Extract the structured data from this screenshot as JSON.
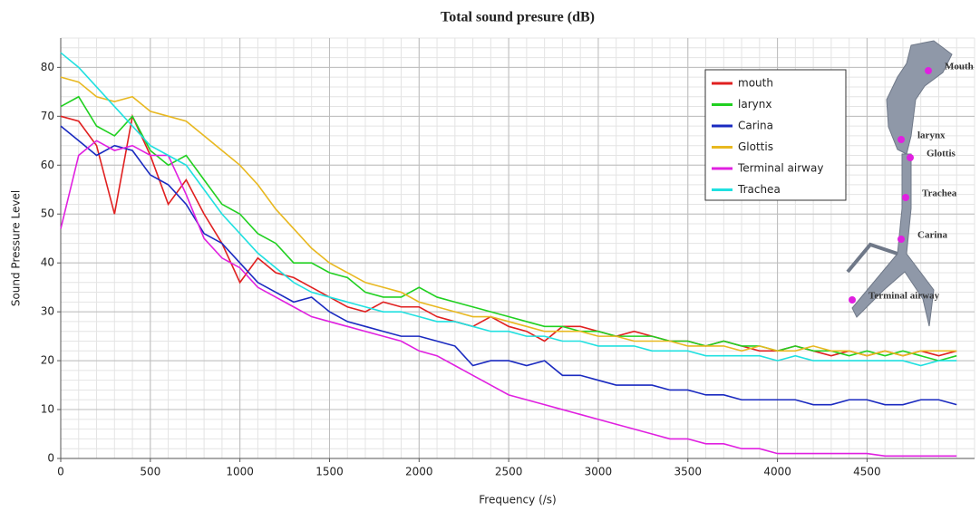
{
  "chart_data": {
    "type": "line",
    "title": "Total sound presure (dB)",
    "x_label": "Frequency (/s)",
    "y_label": "Sound Pressure Level",
    "x": [
      0,
      100,
      200,
      300,
      400,
      500,
      600,
      700,
      800,
      900,
      1000,
      1100,
      1200,
      1300,
      1400,
      1500,
      1600,
      1700,
      1800,
      1900,
      2000,
      2100,
      2200,
      2300,
      2400,
      2500,
      2600,
      2700,
      2800,
      2900,
      3000,
      3100,
      3200,
      3300,
      3400,
      3500,
      3600,
      3700,
      3800,
      3900,
      4000,
      4100,
      4200,
      4300,
      4400,
      4500,
      4600,
      4700,
      4800,
      4900,
      5000
    ],
    "series": [
      {
        "name": "mouth",
        "color": "#e02020",
        "values": [
          70,
          69,
          64,
          50,
          70,
          62,
          52,
          57,
          50,
          44,
          36,
          41,
          38,
          37,
          35,
          33,
          31,
          30,
          32,
          31,
          31,
          29,
          28,
          27,
          29,
          27,
          26,
          24,
          27,
          27,
          26,
          25,
          26,
          25,
          24,
          24,
          23,
          24,
          23,
          22,
          22,
          23,
          22,
          21,
          22,
          21,
          22,
          21,
          22,
          21,
          22
        ]
      },
      {
        "name": "larynx",
        "color": "#20d020",
        "values": [
          72,
          74,
          68,
          66,
          70,
          63,
          60,
          62,
          57,
          52,
          50,
          46,
          44,
          40,
          40,
          38,
          37,
          34,
          33,
          33,
          35,
          33,
          32,
          31,
          30,
          29,
          28,
          27,
          27,
          26,
          26,
          25,
          25,
          25,
          24,
          24,
          23,
          24,
          23,
          23,
          22,
          23,
          22,
          22,
          21,
          22,
          21,
          22,
          21,
          20,
          21
        ]
      },
      {
        "name": "Carina",
        "color": "#1a2ac0",
        "values": [
          68,
          65,
          62,
          64,
          63,
          58,
          56,
          52,
          46,
          44,
          40,
          36,
          34,
          32,
          33,
          30,
          28,
          27,
          26,
          25,
          25,
          24,
          23,
          19,
          20,
          20,
          19,
          20,
          17,
          17,
          16,
          15,
          15,
          15,
          14,
          14,
          13,
          13,
          12,
          12,
          12,
          12,
          11,
          11,
          12,
          12,
          11,
          11,
          12,
          12,
          11
        ]
      },
      {
        "name": "Glottis",
        "color": "#e8b820",
        "values": [
          78,
          77,
          74,
          73,
          74,
          71,
          70,
          69,
          66,
          63,
          60,
          56,
          51,
          47,
          43,
          40,
          38,
          36,
          35,
          34,
          32,
          31,
          30,
          29,
          29,
          28,
          27,
          26,
          26,
          26,
          25,
          25,
          24,
          24,
          24,
          23,
          23,
          23,
          22,
          23,
          22,
          22,
          23,
          22,
          22,
          21,
          22,
          21,
          22,
          22,
          22
        ]
      },
      {
        "name": "Terminal airway",
        "color": "#e020e0",
        "values": [
          47,
          62,
          65,
          63,
          64,
          62,
          62,
          54,
          45,
          41,
          39,
          35,
          33,
          31,
          29,
          28,
          27,
          26,
          25,
          24,
          22,
          21,
          19,
          17,
          15,
          13,
          12,
          11,
          10,
          9,
          8,
          7,
          6,
          5,
          4,
          4,
          3,
          3,
          2,
          2,
          1,
          1,
          1,
          1,
          1,
          1,
          0.5,
          0.5,
          0.5,
          0.5,
          0.5
        ]
      },
      {
        "name": "Trachea",
        "color": "#20e0e0",
        "values": [
          83,
          80,
          76,
          72,
          68,
          64,
          62,
          60,
          55,
          50,
          46,
          42,
          39,
          36,
          34,
          33,
          32,
          31,
          30,
          30,
          29,
          28,
          28,
          27,
          26,
          26,
          25,
          25,
          24,
          24,
          23,
          23,
          23,
          22,
          22,
          22,
          21,
          21,
          21,
          21,
          20,
          21,
          20,
          20,
          20,
          20,
          20,
          20,
          19,
          20,
          20
        ]
      }
    ],
    "xlim": [
      0,
      5100
    ],
    "xticks": [
      0,
      500,
      1000,
      1500,
      2000,
      2500,
      3000,
      3500,
      4000,
      4500
    ],
    "ylim": [
      0,
      86
    ],
    "yticks": [
      0,
      10,
      20,
      30,
      40,
      50,
      60,
      70,
      80
    ],
    "grid": true,
    "legend": "upper right",
    "annotations": [
      "Mouth",
      "larynx",
      "Glottis",
      "Trachea",
      "Carina",
      "Terminal airway"
    ]
  }
}
